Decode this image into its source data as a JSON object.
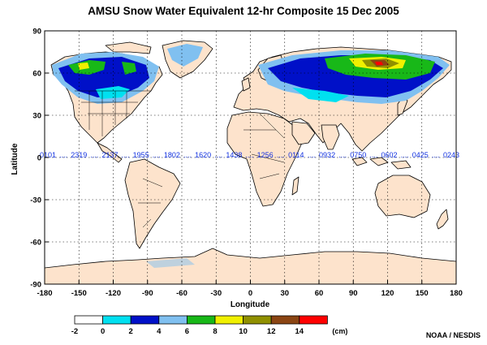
{
  "title": "AMSU Snow Water Equivalent 12-hr Composite  15 Dec 2005",
  "credit": "NOAA / NESDIS",
  "map": {
    "x_label": "Longitude",
    "y_label": "Latitude",
    "x_ticks": [
      "-180",
      "-150",
      "-120",
      "-90",
      "-60",
      "-30",
      "0",
      "30",
      "60",
      "90",
      "120",
      "150",
      "180"
    ],
    "y_ticks": [
      "90",
      "60",
      "30",
      "0",
      "-30",
      "-60",
      "-90"
    ],
    "x_range": [
      -180,
      180
    ],
    "y_range": [
      -90,
      90
    ],
    "grid": "dotted",
    "time_labels": [
      "0101",
      "2319",
      "2137",
      "1955",
      "1802",
      "1620",
      "1438",
      "1256",
      "0114",
      "0932",
      "0750",
      "0602",
      "0425",
      "0243"
    ],
    "time_label_color": "#1030e0"
  },
  "legend": {
    "boundaries": [
      "-2",
      "0",
      "2",
      "4",
      "6",
      "8",
      "10",
      "12",
      "14"
    ],
    "unit": "(cm)",
    "colors": [
      "#ffffff",
      "#00e0f0",
      "#0010c8",
      "#80c0f0",
      "#18b818",
      "#f0f000",
      "#909000",
      "#8b4513",
      "#ff0000"
    ]
  },
  "colors": {
    "land": "#fde3cc",
    "coast": "#000000",
    "grid": "#000000"
  }
}
